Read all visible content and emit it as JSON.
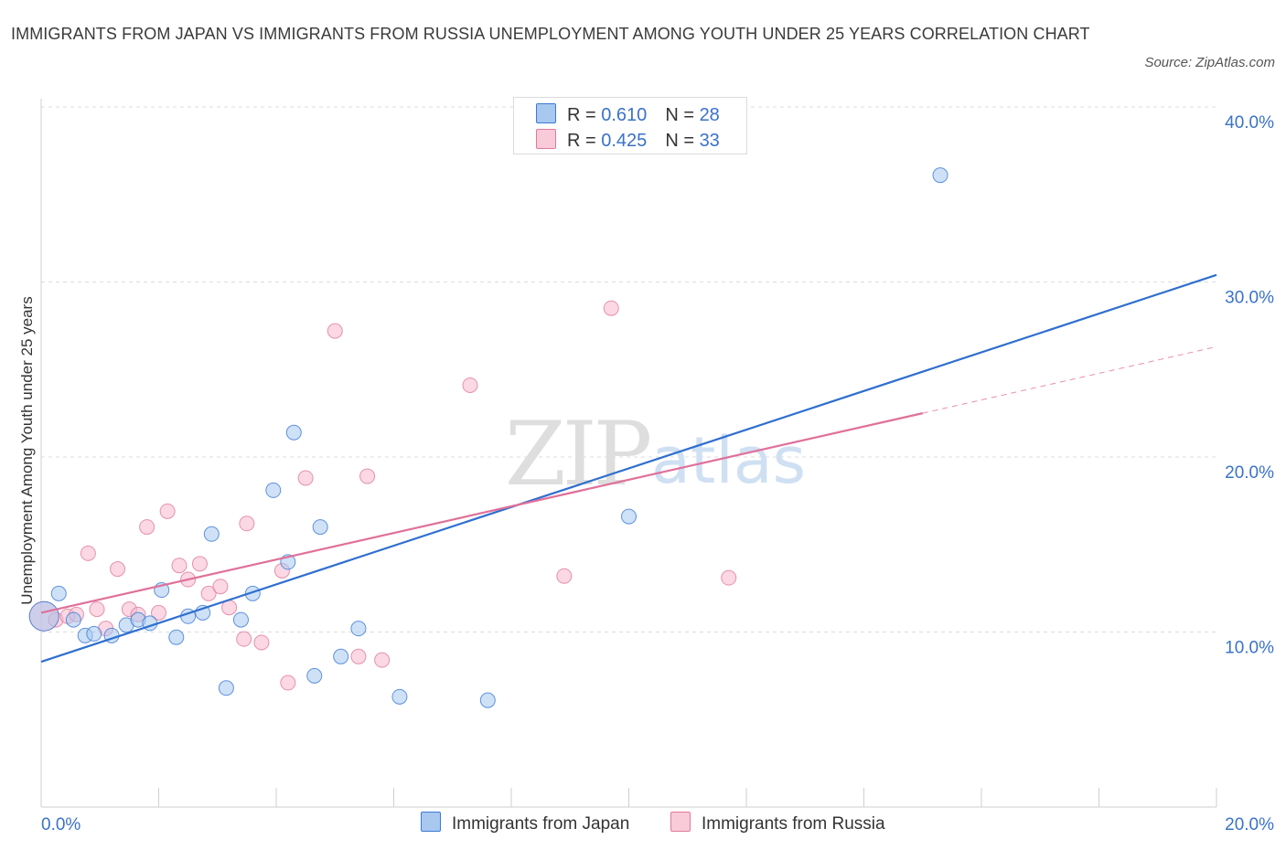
{
  "title": "IMMIGRANTS FROM JAPAN VS IMMIGRANTS FROM RUSSIA UNEMPLOYMENT AMONG YOUTH UNDER 25 YEARS CORRELATION CHART",
  "source": "Source: ZipAtlas.com",
  "watermark": {
    "zip": "ZIP",
    "atlas": "atlas"
  },
  "colors": {
    "japan_fill": "#a8c8f0",
    "japan_stroke": "#3a7bd5",
    "japan_line": "#2f6fcf",
    "russia_fill": "#f7b8cc",
    "russia_stroke": "#e07a9c",
    "russia_line": "#e0709a",
    "tick_label": "#3a72c9",
    "grid": "#dcdcdc"
  },
  "stats": {
    "japan": {
      "r_label": "R = ",
      "r_value": "0.610",
      "n_label": "N = ",
      "n_value": "28"
    },
    "russia": {
      "r_label": "R = ",
      "r_value": "0.425",
      "n_label": "N = ",
      "n_value": "33"
    }
  },
  "chart_data": {
    "type": "scatter",
    "title": "IMMIGRANTS FROM JAPAN VS IMMIGRANTS FROM RUSSIA UNEMPLOYMENT AMONG YOUTH UNDER 25 YEARS CORRELATION CHART",
    "xlabel": "",
    "ylabel": "Unemployment Among Youth under 25 years",
    "xlim": [
      0,
      20
    ],
    "ylim": [
      0,
      40
    ],
    "x_tick_labels": [
      "0.0%",
      "20.0%"
    ],
    "y_ticks": [
      10,
      20,
      30,
      40
    ],
    "y_tick_labels": [
      "10.0%",
      "20.0%",
      "30.0%",
      "40.0%"
    ],
    "grid": true,
    "legend_position": "bottom-center",
    "series": [
      {
        "name": "Immigrants from Japan",
        "r": 0.61,
        "n": 28,
        "trend": {
          "x": [
            0,
            20
          ],
          "y": [
            8.3,
            30.4
          ],
          "dashed_to": null
        },
        "points": [
          {
            "x": 0.05,
            "y": 10.9,
            "big": true
          },
          {
            "x": 0.3,
            "y": 12.2
          },
          {
            "x": 0.55,
            "y": 10.7
          },
          {
            "x": 0.75,
            "y": 9.8
          },
          {
            "x": 0.9,
            "y": 9.9
          },
          {
            "x": 1.2,
            "y": 9.8
          },
          {
            "x": 1.45,
            "y": 10.4
          },
          {
            "x": 1.65,
            "y": 10.7
          },
          {
            "x": 1.85,
            "y": 10.5
          },
          {
            "x": 2.05,
            "y": 12.4
          },
          {
            "x": 2.3,
            "y": 9.7
          },
          {
            "x": 2.5,
            "y": 10.9
          },
          {
            "x": 2.75,
            "y": 11.1
          },
          {
            "x": 2.9,
            "y": 15.6
          },
          {
            "x": 3.15,
            "y": 6.8
          },
          {
            "x": 3.4,
            "y": 10.7
          },
          {
            "x": 3.6,
            "y": 12.2
          },
          {
            "x": 3.95,
            "y": 18.1
          },
          {
            "x": 4.2,
            "y": 14.0
          },
          {
            "x": 4.3,
            "y": 21.4
          },
          {
            "x": 4.65,
            "y": 7.5
          },
          {
            "x": 4.75,
            "y": 16.0
          },
          {
            "x": 5.1,
            "y": 8.6
          },
          {
            "x": 5.4,
            "y": 10.2
          },
          {
            "x": 6.1,
            "y": 6.3
          },
          {
            "x": 7.6,
            "y": 6.1
          },
          {
            "x": 10.0,
            "y": 16.6
          },
          {
            "x": 15.3,
            "y": 36.1
          }
        ]
      },
      {
        "name": "Immigrants from Russia",
        "r": 0.425,
        "n": 33,
        "trend": {
          "x": [
            0,
            15.0
          ],
          "y": [
            11.1,
            22.5
          ],
          "dashed_to": [
            20,
            26.3
          ]
        },
        "points": [
          {
            "x": 0.05,
            "y": 10.9,
            "big": true
          },
          {
            "x": 0.25,
            "y": 10.7
          },
          {
            "x": 0.45,
            "y": 10.9
          },
          {
            "x": 0.6,
            "y": 11.0
          },
          {
            "x": 0.8,
            "y": 14.5
          },
          {
            "x": 0.95,
            "y": 11.3
          },
          {
            "x": 1.1,
            "y": 10.2
          },
          {
            "x": 1.3,
            "y": 13.6
          },
          {
            "x": 1.5,
            "y": 11.3
          },
          {
            "x": 1.65,
            "y": 11.0
          },
          {
            "x": 1.8,
            "y": 16.0
          },
          {
            "x": 2.0,
            "y": 11.1
          },
          {
            "x": 2.15,
            "y": 16.9
          },
          {
            "x": 2.35,
            "y": 13.8
          },
          {
            "x": 2.5,
            "y": 13.0
          },
          {
            "x": 2.7,
            "y": 13.9
          },
          {
            "x": 2.85,
            "y": 12.2
          },
          {
            "x": 3.05,
            "y": 12.6
          },
          {
            "x": 3.2,
            "y": 11.4
          },
          {
            "x": 3.45,
            "y": 9.6
          },
          {
            "x": 3.5,
            "y": 16.2
          },
          {
            "x": 3.75,
            "y": 9.4
          },
          {
            "x": 4.1,
            "y": 13.5
          },
          {
            "x": 4.2,
            "y": 7.1
          },
          {
            "x": 4.5,
            "y": 18.8
          },
          {
            "x": 5.0,
            "y": 27.2
          },
          {
            "x": 5.4,
            "y": 8.6
          },
          {
            "x": 5.55,
            "y": 18.9
          },
          {
            "x": 5.8,
            "y": 8.4
          },
          {
            "x": 7.3,
            "y": 24.1
          },
          {
            "x": 8.9,
            "y": 13.2
          },
          {
            "x": 9.7,
            "y": 28.5
          },
          {
            "x": 11.7,
            "y": 13.1
          }
        ]
      }
    ]
  },
  "legend": {
    "japan": "Immigrants from Japan",
    "russia": "Immigrants from Russia"
  }
}
